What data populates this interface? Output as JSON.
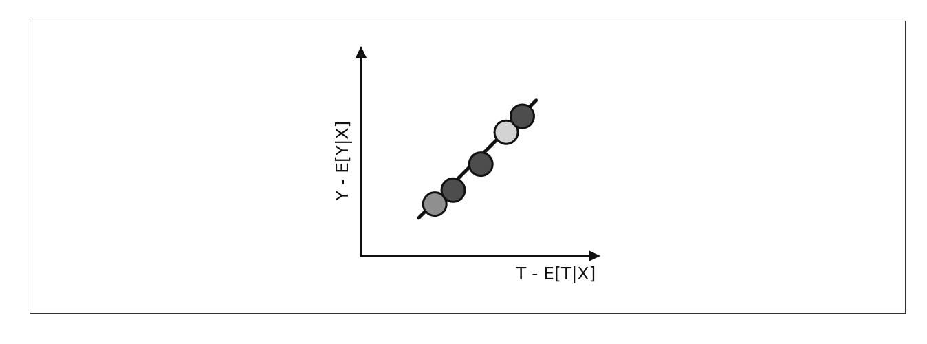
{
  "diagram": {
    "x_axis_label": "T - E[T|X]",
    "y_axis_label": "Y - E[Y|X]"
  },
  "chart_data": {
    "type": "scatter",
    "title": "",
    "xlabel": "T - E[T|X]",
    "ylabel": "Y - E[Y|X]",
    "grid": false,
    "trend_line": {
      "from": [
        0.25,
        0.19
      ],
      "to": [
        0.76,
        0.78
      ]
    },
    "points": [
      {
        "x": 0.32,
        "y": 0.26,
        "color": "#8f8f8f"
      },
      {
        "x": 0.4,
        "y": 0.33,
        "color": "#4d4d4d"
      },
      {
        "x": 0.52,
        "y": 0.46,
        "color": "#4d4d4d"
      },
      {
        "x": 0.63,
        "y": 0.62,
        "color": "#d3d3d3"
      },
      {
        "x": 0.7,
        "y": 0.7,
        "color": "#4d4d4d"
      }
    ]
  }
}
